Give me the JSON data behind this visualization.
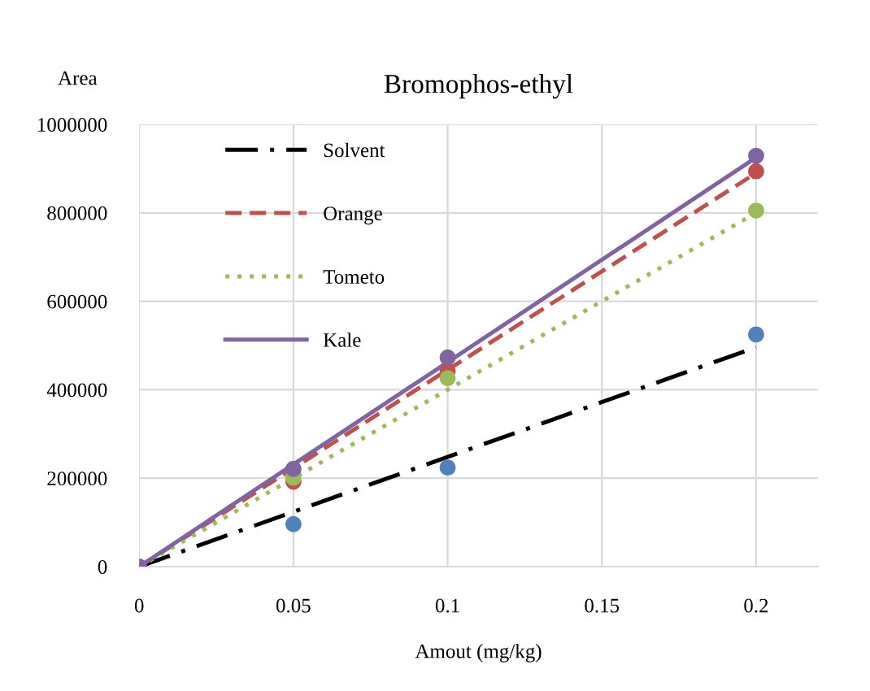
{
  "chart_data": {
    "type": "line",
    "title": "Bromophos-ethyl",
    "xlabel": "Amout (mg/kg)",
    "ylabel": "Area",
    "xlim": [
      0,
      0.22
    ],
    "xticks": [
      0,
      0.05,
      0.1,
      0.15,
      0.2
    ],
    "ylim": [
      0,
      1000000
    ],
    "yticks": [
      0,
      200000,
      400000,
      600000,
      800000,
      1000000
    ],
    "grid": true,
    "legend": "top left",
    "series": [
      {
        "type": "scatter",
        "marker": "circle",
        "color": "#4f81bd",
        "x": [
          0.05,
          0.1,
          0.2
        ],
        "values": [
          96000,
          224000,
          525000
        ]
      },
      {
        "type": "scatter",
        "marker": "circle",
        "color": "#c0504d",
        "x": [
          0.05,
          0.1,
          0.2
        ],
        "values": [
          192000,
          442000,
          894000
        ]
      },
      {
        "type": "scatter",
        "marker": "circle",
        "color": "#9bbb59",
        "x": [
          0.05,
          0.1,
          0.2
        ],
        "values": [
          201000,
          426000,
          805000
        ]
      },
      {
        "type": "scatter",
        "marker": "circle",
        "color": "#8064a2",
        "x": [
          0,
          0.05,
          0.1,
          0.2
        ],
        "values": [
          0,
          221000,
          473000,
          929000
        ]
      },
      {
        "name": "Solvent",
        "color": "#000000",
        "line_style": "dashdot",
        "x": [
          0,
          0.2
        ],
        "values": [
          0,
          496000
        ]
      },
      {
        "name": "Orange",
        "color": "#c0504d",
        "line_style": "dashed",
        "x": [
          0,
          0.2
        ],
        "values": [
          0,
          890000
        ]
      },
      {
        "name": "Tometo",
        "color": "#9bbb59",
        "line_style": "dotted",
        "x": [
          0,
          0.2
        ],
        "values": [
          0,
          800000
        ]
      },
      {
        "name": "Kale",
        "color": "#8064a2",
        "line_style": "solid",
        "x": [
          0,
          0.2
        ],
        "values": [
          0,
          925000
        ]
      }
    ]
  }
}
